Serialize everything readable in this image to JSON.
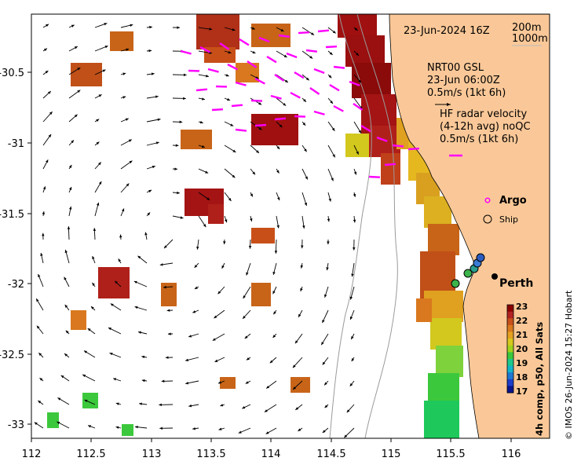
{
  "header": {
    "datetime": "23-Jun-2024 16Z"
  },
  "depth_contours": {
    "label_1": "200m",
    "label_2": "1000m"
  },
  "nrt_legend": {
    "title": "NRT00 GSL",
    "datetime": "23-Jun 06:00Z",
    "scale": "0.5m/s (1kt 6h)"
  },
  "radar_legend": {
    "title": "HF radar velocity",
    "subtitle": "(4-12h avg) noQC",
    "scale": "0.5m/s (1kt 6h)"
  },
  "markers": {
    "argo_label": "Argo",
    "ship_label": "Ship",
    "city_label": "Perth",
    "argo_color": "#ff00ff"
  },
  "colorbar": {
    "ticks": [
      "23",
      "22",
      "21",
      "20",
      "19",
      "18",
      "17"
    ],
    "caption": "4h comp, p50, All Sats",
    "colors": [
      "#8b0000",
      "#b22222",
      "#c8501a",
      "#d9781e",
      "#e6a020",
      "#d7c81e",
      "#a0d21e",
      "#3cc83c",
      "#1ec88c",
      "#14b4c8",
      "#1e78d2",
      "#1e3cc8",
      "#0a148c"
    ]
  },
  "credit": "© IMOS 26-Jun-2024 15:27 Hobart",
  "axes": {
    "x_ticks": [
      "112",
      "112.5",
      "113",
      "113.5",
      "114",
      "114.5",
      "115",
      "115.5",
      "116"
    ],
    "y_ticks": [
      "-30.5",
      "-31",
      "-31.5",
      "-32",
      "-32.5",
      "-33"
    ]
  },
  "colors": {
    "land": "#fac898",
    "radar_arrow": "#ff00ff",
    "axis": "#000000"
  }
}
